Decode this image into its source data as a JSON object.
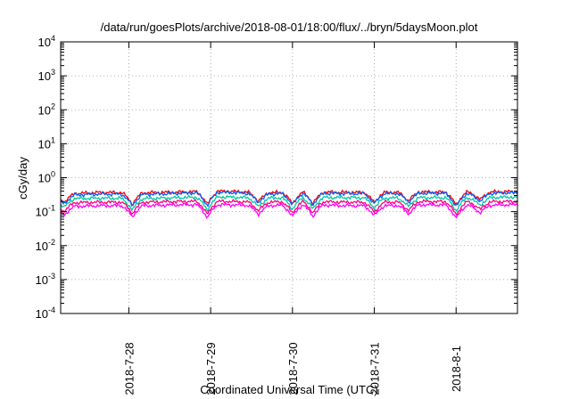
{
  "chart_data": {
    "type": "line",
    "title": "/data/run/goesPlots/archive/2018-08-01/18:00/flux/../bryn/5daysMoon.plot",
    "xlabel": "Coordinated Universal Time (UTC)",
    "ylabel": "cGy/day",
    "yscale": "log",
    "ylim": [
      0.0001,
      10000
    ],
    "xlim": [
      "2018-07-27 04:00",
      "2018-08-01 18:00"
    ],
    "grid": true,
    "y_ticks": [
      {
        "base": "10",
        "exp": "-4"
      },
      {
        "base": "10",
        "exp": "-3"
      },
      {
        "base": "10",
        "exp": "-2"
      },
      {
        "base": "10",
        "exp": "-1"
      },
      {
        "base": "10",
        "exp": "0"
      },
      {
        "base": "10",
        "exp": "1"
      },
      {
        "base": "10",
        "exp": "2"
      },
      {
        "base": "10",
        "exp": "3"
      },
      {
        "base": "10",
        "exp": "4"
      }
    ],
    "x_ticks": [
      {
        "label": "2018-7-28",
        "date": "2018-07-28"
      },
      {
        "label": "2018-7-29",
        "date": "2018-07-29"
      },
      {
        "label": "2018-7-30",
        "date": "2018-07-30"
      },
      {
        "label": "2018-7-31",
        "date": "2018-07-31"
      },
      {
        "label": "2018-8-1",
        "date": "2018-08-01"
      }
    ],
    "x": [
      "2018-07-27 04:00",
      "2018-07-27 16:00",
      "2018-07-28 04:00",
      "2018-07-28 16:00",
      "2018-07-29 04:00",
      "2018-07-29 16:00",
      "2018-07-30 04:00",
      "2018-07-30 16:00",
      "2018-07-31 04:00",
      "2018-07-31 16:00",
      "2018-08-01 04:00",
      "2018-08-01 16:00",
      "2018-08-01 18:00"
    ],
    "series": [
      {
        "color": "#ff0000",
        "values": [
          0.33,
          0.37,
          0.36,
          0.38,
          0.4,
          0.36,
          0.38,
          0.37,
          0.37,
          0.38,
          0.37,
          0.39,
          0.38
        ]
      },
      {
        "color": "#0060ff",
        "values": [
          0.3,
          0.33,
          0.32,
          0.35,
          0.37,
          0.33,
          0.35,
          0.34,
          0.34,
          0.35,
          0.33,
          0.36,
          0.35
        ]
      },
      {
        "color": "#00c8a0",
        "values": [
          0.24,
          0.25,
          0.24,
          0.26,
          0.27,
          0.25,
          0.26,
          0.26,
          0.25,
          0.26,
          0.25,
          0.27,
          0.26
        ]
      },
      {
        "color": "#ff0080",
        "values": [
          0.18,
          0.19,
          0.19,
          0.2,
          0.2,
          0.19,
          0.2,
          0.19,
          0.19,
          0.2,
          0.19,
          0.2,
          0.2
        ]
      },
      {
        "color": "#ff00ff",
        "values": [
          0.14,
          0.15,
          0.15,
          0.16,
          0.16,
          0.15,
          0.16,
          0.15,
          0.15,
          0.16,
          0.15,
          0.16,
          0.16
        ]
      }
    ],
    "dips": [
      {
        "x": "2018-07-27 05:00",
        "factor": 0.55
      },
      {
        "x": "2018-07-28 01:00",
        "factor": 0.45
      },
      {
        "x": "2018-07-28 23:00",
        "factor": 0.4
      },
      {
        "x": "2018-07-29 14:00",
        "factor": 0.55
      },
      {
        "x": "2018-07-30 00:00",
        "factor": 0.45
      },
      {
        "x": "2018-07-30 06:00",
        "factor": 0.45
      },
      {
        "x": "2018-07-31 00:00",
        "factor": 0.5
      },
      {
        "x": "2018-07-31 10:00",
        "factor": 0.55
      },
      {
        "x": "2018-08-01 00:00",
        "factor": 0.4
      },
      {
        "x": "2018-08-01 07:00",
        "factor": 0.6
      }
    ]
  }
}
